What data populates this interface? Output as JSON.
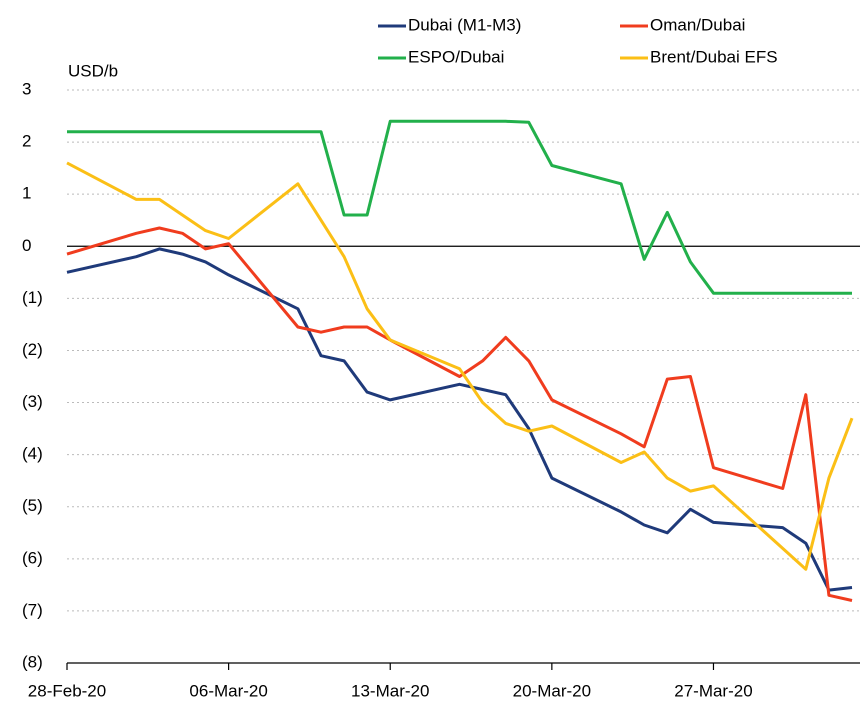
{
  "chart_data": {
    "type": "line",
    "y_axis_label": "USD/b",
    "x": [
      "2020-02-28",
      "2020-03-02",
      "2020-03-03",
      "2020-03-04",
      "2020-03-05",
      "2020-03-06",
      "2020-03-09",
      "2020-03-10",
      "2020-03-11",
      "2020-03-12",
      "2020-03-13",
      "2020-03-16",
      "2020-03-17",
      "2020-03-18",
      "2020-03-19",
      "2020-03-20",
      "2020-03-23",
      "2020-03-24",
      "2020-03-25",
      "2020-03-26",
      "2020-03-27",
      "2020-03-30",
      "2020-03-31",
      "2020-04-01",
      "2020-04-02"
    ],
    "series": [
      {
        "name": "Dubai (M1-M3)",
        "color": "#1f3a7a",
        "values": [
          -0.5,
          -0.2,
          -0.05,
          -0.15,
          -0.3,
          -0.55,
          -1.2,
          -2.1,
          -2.2,
          -2.8,
          -2.95,
          -2.65,
          -2.75,
          -2.85,
          -3.5,
          -4.45,
          -5.1,
          -5.35,
          -5.5,
          -5.05,
          -5.3,
          -5.4,
          -5.7,
          -6.6,
          -6.55
        ]
      },
      {
        "name": "Oman/Dubai",
        "color": "#f03c1e",
        "values": [
          -0.15,
          0.25,
          0.35,
          0.25,
          -0.05,
          0.05,
          -1.55,
          -1.65,
          -1.55,
          -1.55,
          -1.8,
          -2.5,
          -2.2,
          -1.75,
          -2.2,
          -2.95,
          -3.6,
          -3.85,
          -2.55,
          -2.5,
          -4.25,
          -4.65,
          -2.85,
          -6.7,
          -6.8
        ]
      },
      {
        "name": "ESPO/Dubai",
        "color": "#22b04b",
        "values": [
          2.2,
          2.2,
          2.2,
          2.2,
          2.2,
          2.2,
          2.2,
          2.2,
          0.6,
          0.6,
          2.4,
          2.4,
          2.4,
          2.4,
          2.38,
          1.55,
          1.2,
          -0.25,
          0.65,
          -0.3,
          -0.9,
          -0.9,
          -0.9,
          -0.9,
          -0.9
        ]
      },
      {
        "name": "Brent/Dubai EFS",
        "color": "#fbbf16",
        "values": [
          1.6,
          0.9,
          0.9,
          0.6,
          0.3,
          0.15,
          1.2,
          0.5,
          -0.2,
          -1.2,
          -1.8,
          -2.35,
          -3.0,
          -3.4,
          -3.55,
          -3.45,
          -4.15,
          -3.95,
          -4.45,
          -4.7,
          -4.6,
          -5.8,
          -6.2,
          -4.45,
          -3.3
        ]
      }
    ],
    "xlim": [
      "2020-02-28",
      "2020-04-02"
    ],
    "xticks": [
      {
        "value": "2020-02-28",
        "label": "28-Feb-20"
      },
      {
        "value": "2020-03-06",
        "label": "06-Mar-20"
      },
      {
        "value": "2020-03-13",
        "label": "13-Mar-20"
      },
      {
        "value": "2020-03-20",
        "label": "20-Mar-20"
      },
      {
        "value": "2020-03-27",
        "label": "27-Mar-20"
      }
    ],
    "ylim": [
      -8,
      3
    ],
    "yticks": [
      3,
      2,
      1,
      0,
      {
        "value": -1,
        "label": "(1)"
      },
      {
        "value": -2,
        "label": "(2)"
      },
      {
        "value": -3,
        "label": "(3)"
      },
      {
        "value": -4,
        "label": "(4)"
      },
      {
        "value": -5,
        "label": "(5)"
      },
      {
        "value": -6,
        "label": "(6)"
      },
      {
        "value": -7,
        "label": "(7)"
      },
      {
        "value": -8,
        "label": "(8)"
      }
    ],
    "grid": true
  }
}
